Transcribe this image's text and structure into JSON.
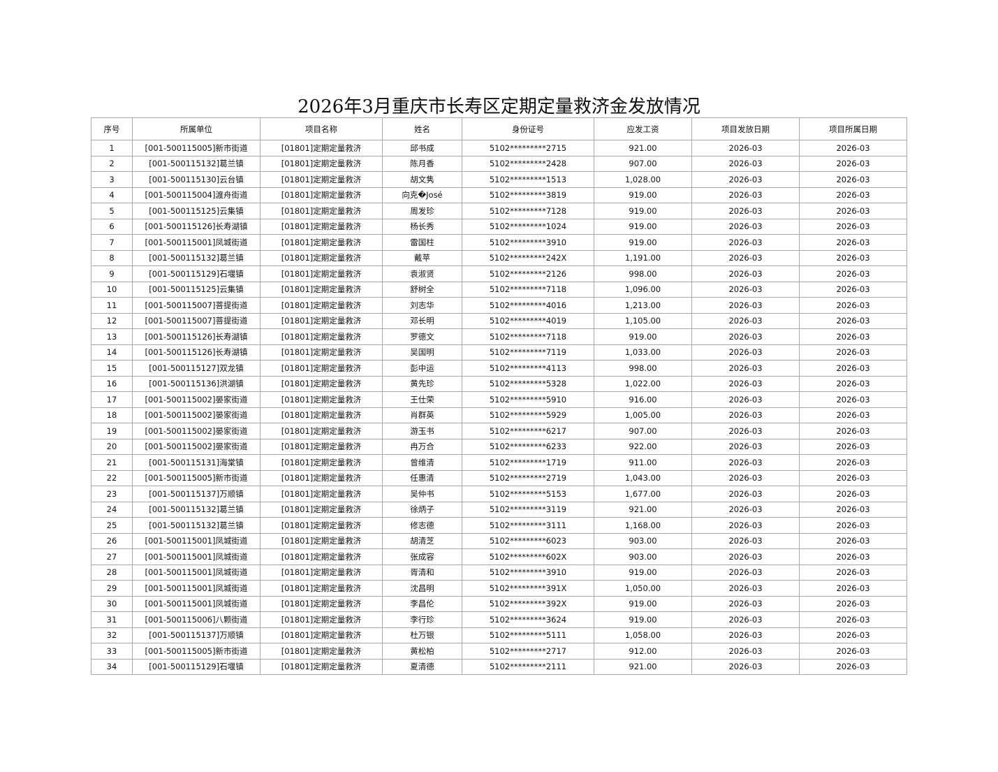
{
  "title": "2026年3月重庆市长寿区定期定量救济金发放情况",
  "columns": [
    "序号",
    "所属单位",
    "项目名称",
    "姓名",
    "身份证号",
    "应发工资",
    "项目发放日期",
    "项目所属日期"
  ],
  "rows": [
    {
      "no": "1",
      "unit": "[001-500115005]新市街道",
      "project": "[01801]定期定量救济",
      "name": "邱书成",
      "id": "5102*********2715",
      "amount": "921.00",
      "pay_date": "2026-03",
      "period": "2026-03"
    },
    {
      "no": "2",
      "unit": "[001-500115132]葛兰镇",
      "project": "[01801]定期定量救济",
      "name": "陈月香",
      "id": "5102*********2428",
      "amount": "907.00",
      "pay_date": "2026-03",
      "period": "2026-03"
    },
    {
      "no": "3",
      "unit": "[001-500115130]云台镇",
      "project": "[01801]定期定量救济",
      "name": "胡文隽",
      "id": "5102*********1513",
      "amount": "1,028.00",
      "pay_date": "2026-03",
      "period": "2026-03"
    },
    {
      "no": "4",
      "unit": "[001-500115004]渡舟街道",
      "project": "[01801]定期定量救济",
      "name": "向克�José",
      "id": "5102*********3819",
      "amount": "919.00",
      "pay_date": "2026-03",
      "period": "2026-03"
    },
    {
      "no": "5",
      "unit": "[001-500115125]云集镇",
      "project": "[01801]定期定量救济",
      "name": "周发珍",
      "id": "5102*********7128",
      "amount": "919.00",
      "pay_date": "2026-03",
      "period": "2026-03"
    },
    {
      "no": "6",
      "unit": "[001-500115126]长寿湖镇",
      "project": "[01801]定期定量救济",
      "name": "杨长秀",
      "id": "5102*********1024",
      "amount": "919.00",
      "pay_date": "2026-03",
      "period": "2026-03"
    },
    {
      "no": "7",
      "unit": "[001-500115001]凤城街道",
      "project": "[01801]定期定量救济",
      "name": "雷国柱",
      "id": "5102*********3910",
      "amount": "919.00",
      "pay_date": "2026-03",
      "period": "2026-03"
    },
    {
      "no": "8",
      "unit": "[001-500115132]葛兰镇",
      "project": "[01801]定期定量救济",
      "name": "戴苹",
      "id": "5102*********242X",
      "amount": "1,191.00",
      "pay_date": "2026-03",
      "period": "2026-03"
    },
    {
      "no": "9",
      "unit": "[001-500115129]石堰镇",
      "project": "[01801]定期定量救济",
      "name": "袁淑贤",
      "id": "5102*********2126",
      "amount": "998.00",
      "pay_date": "2026-03",
      "period": "2026-03"
    },
    {
      "no": "10",
      "unit": "[001-500115125]云集镇",
      "project": "[01801]定期定量救济",
      "name": "舒树全",
      "id": "5102*********7118",
      "amount": "1,096.00",
      "pay_date": "2026-03",
      "period": "2026-03"
    },
    {
      "no": "11",
      "unit": "[001-500115007]菩提街道",
      "project": "[01801]定期定量救济",
      "name": "刘志华",
      "id": "5102*********4016",
      "amount": "1,213.00",
      "pay_date": "2026-03",
      "period": "2026-03"
    },
    {
      "no": "12",
      "unit": "[001-500115007]菩提街道",
      "project": "[01801]定期定量救济",
      "name": "邓长明",
      "id": "5102*********4019",
      "amount": "1,105.00",
      "pay_date": "2026-03",
      "period": "2026-03"
    },
    {
      "no": "13",
      "unit": "[001-500115126]长寿湖镇",
      "project": "[01801]定期定量救济",
      "name": "罗德文",
      "id": "5102*********7118",
      "amount": "919.00",
      "pay_date": "2026-03",
      "period": "2026-03"
    },
    {
      "no": "14",
      "unit": "[001-500115126]长寿湖镇",
      "project": "[01801]定期定量救济",
      "name": "吴国明",
      "id": "5102*********7119",
      "amount": "1,033.00",
      "pay_date": "2026-03",
      "period": "2026-03"
    },
    {
      "no": "15",
      "unit": "[001-500115127]双龙镇",
      "project": "[01801]定期定量救济",
      "name": "彭中运",
      "id": "5102*********4113",
      "amount": "998.00",
      "pay_date": "2026-03",
      "period": "2026-03"
    },
    {
      "no": "16",
      "unit": "[001-500115136]洪湖镇",
      "project": "[01801]定期定量救济",
      "name": "黄先珍",
      "id": "5102*********5328",
      "amount": "1,022.00",
      "pay_date": "2026-03",
      "period": "2026-03"
    },
    {
      "no": "17",
      "unit": "[001-500115002]晏家街道",
      "project": "[01801]定期定量救济",
      "name": "王仕荣",
      "id": "5102*********5910",
      "amount": "916.00",
      "pay_date": "2026-03",
      "period": "2026-03"
    },
    {
      "no": "18",
      "unit": "[001-500115002]晏家街道",
      "project": "[01801]定期定量救济",
      "name": "肖群英",
      "id": "5102*********5929",
      "amount": "1,005.00",
      "pay_date": "2026-03",
      "period": "2026-03"
    },
    {
      "no": "19",
      "unit": "[001-500115002]晏家街道",
      "project": "[01801]定期定量救济",
      "name": "游玉书",
      "id": "5102*********6217",
      "amount": "907.00",
      "pay_date": "2026-03",
      "period": "2026-03"
    },
    {
      "no": "20",
      "unit": "[001-500115002]晏家街道",
      "project": "[01801]定期定量救济",
      "name": "冉万合",
      "id": "5102*********6233",
      "amount": "922.00",
      "pay_date": "2026-03",
      "period": "2026-03"
    },
    {
      "no": "21",
      "unit": "[001-500115131]海棠镇",
      "project": "[01801]定期定量救济",
      "name": "曾维清",
      "id": "5102*********1719",
      "amount": "911.00",
      "pay_date": "2026-03",
      "period": "2026-03"
    },
    {
      "no": "22",
      "unit": "[001-500115005]新市街道",
      "project": "[01801]定期定量救济",
      "name": "任惠清",
      "id": "5102*********2719",
      "amount": "1,043.00",
      "pay_date": "2026-03",
      "period": "2026-03"
    },
    {
      "no": "23",
      "unit": "[001-500115137]万顺镇",
      "project": "[01801]定期定量救济",
      "name": "吴仲书",
      "id": "5102*********5153",
      "amount": "1,677.00",
      "pay_date": "2026-03",
      "period": "2026-03"
    },
    {
      "no": "24",
      "unit": "[001-500115132]葛兰镇",
      "project": "[01801]定期定量救济",
      "name": "徐炳子",
      "id": "5102*********3119",
      "amount": "921.00",
      "pay_date": "2026-03",
      "period": "2026-03"
    },
    {
      "no": "25",
      "unit": "[001-500115132]葛兰镇",
      "project": "[01801]定期定量救济",
      "name": "修志德",
      "id": "5102*********3111",
      "amount": "1,168.00",
      "pay_date": "2026-03",
      "period": "2026-03"
    },
    {
      "no": "26",
      "unit": "[001-500115001]凤城街道",
      "project": "[01801]定期定量救济",
      "name": "胡清芝",
      "id": "5102*********6023",
      "amount": "903.00",
      "pay_date": "2026-03",
      "period": "2026-03"
    },
    {
      "no": "27",
      "unit": "[001-500115001]凤城街道",
      "project": "[01801]定期定量救济",
      "name": "张成容",
      "id": "5102*********602X",
      "amount": "903.00",
      "pay_date": "2026-03",
      "period": "2026-03"
    },
    {
      "no": "28",
      "unit": "[001-500115001]凤城街道",
      "project": "[01801]定期定量救济",
      "name": "胥清和",
      "id": "5102*********3910",
      "amount": "919.00",
      "pay_date": "2026-03",
      "period": "2026-03"
    },
    {
      "no": "29",
      "unit": "[001-500115001]凤城街道",
      "project": "[01801]定期定量救济",
      "name": "沈昌明",
      "id": "5102*********391X",
      "amount": "1,050.00",
      "pay_date": "2026-03",
      "period": "2026-03"
    },
    {
      "no": "30",
      "unit": "[001-500115001]凤城街道",
      "project": "[01801]定期定量救济",
      "name": "李昌伦",
      "id": "5102*********392X",
      "amount": "919.00",
      "pay_date": "2026-03",
      "period": "2026-03"
    },
    {
      "no": "31",
      "unit": "[001-500115006]八颗街道",
      "project": "[01801]定期定量救济",
      "name": "李行珍",
      "id": "5102*********3624",
      "amount": "919.00",
      "pay_date": "2026-03",
      "period": "2026-03"
    },
    {
      "no": "32",
      "unit": "[001-500115137]万顺镇",
      "project": "[01801]定期定量救济",
      "name": "杜万银",
      "id": "5102*********5111",
      "amount": "1,058.00",
      "pay_date": "2026-03",
      "period": "2026-03"
    },
    {
      "no": "33",
      "unit": "[001-500115005]新市街道",
      "project": "[01801]定期定量救济",
      "name": "黄松柏",
      "id": "5102*********2717",
      "amount": "912.00",
      "pay_date": "2026-03",
      "period": "2026-03"
    },
    {
      "no": "34",
      "unit": "[001-500115129]石堰镇",
      "project": "[01801]定期定量救济",
      "name": "夏清德",
      "id": "5102*********2111",
      "amount": "921.00",
      "pay_date": "2026-03",
      "period": "2026-03"
    }
  ]
}
